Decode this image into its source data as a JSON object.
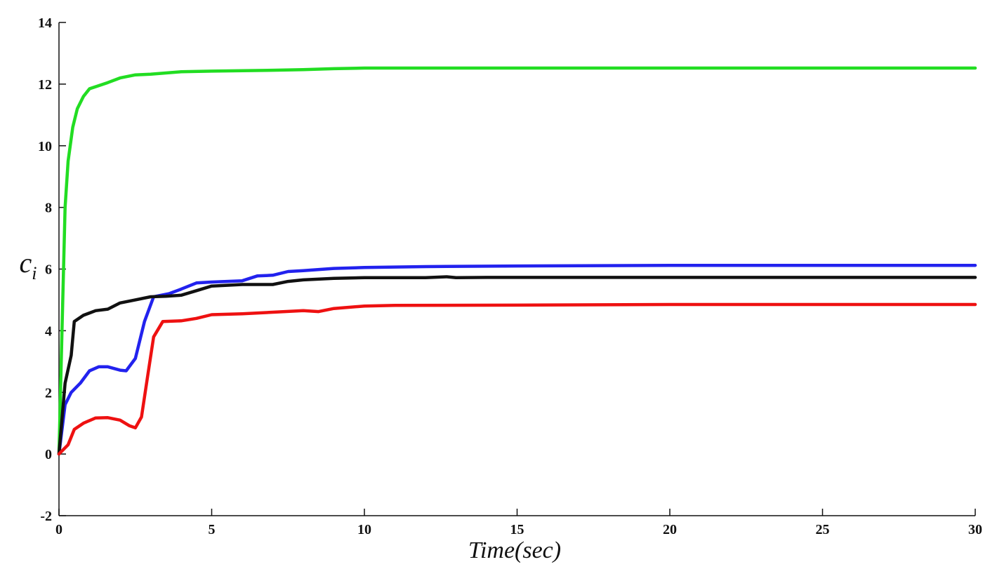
{
  "chart_data": {
    "type": "line",
    "xlabel": "Time(sec)",
    "ylabel_main": "c",
    "ylabel_sub": "i",
    "xlim": [
      0,
      30
    ],
    "ylim": [
      -2,
      14
    ],
    "xticks": [
      "0",
      "5",
      "10",
      "15",
      "20",
      "25",
      "30"
    ],
    "yticks": [
      "-2",
      "0",
      "2",
      "4",
      "6",
      "8",
      "10",
      "12",
      "14"
    ],
    "grid": false,
    "series": [
      {
        "color": "#22dd22",
        "points": [
          [
            0,
            0
          ],
          [
            0.1,
            4
          ],
          [
            0.2,
            8
          ],
          [
            0.3,
            9.5
          ],
          [
            0.45,
            10.6
          ],
          [
            0.6,
            11.2
          ],
          [
            0.8,
            11.6
          ],
          [
            1.0,
            11.85
          ],
          [
            1.3,
            11.95
          ],
          [
            1.6,
            12.05
          ],
          [
            2.0,
            12.2
          ],
          [
            2.5,
            12.3
          ],
          [
            3.0,
            12.32
          ],
          [
            4.0,
            12.4
          ],
          [
            5.0,
            12.42
          ],
          [
            7.0,
            12.45
          ],
          [
            8.0,
            12.47
          ],
          [
            9.0,
            12.5
          ],
          [
            10.0,
            12.52
          ],
          [
            15.0,
            12.52
          ],
          [
            20.0,
            12.52
          ],
          [
            25.0,
            12.52
          ],
          [
            30.0,
            12.52
          ]
        ]
      },
      {
        "color": "#2222ee",
        "points": [
          [
            0,
            0
          ],
          [
            0.2,
            1.6
          ],
          [
            0.4,
            2.0
          ],
          [
            0.7,
            2.3
          ],
          [
            1.0,
            2.7
          ],
          [
            1.3,
            2.83
          ],
          [
            1.6,
            2.83
          ],
          [
            2.0,
            2.72
          ],
          [
            2.2,
            2.7
          ],
          [
            2.5,
            3.1
          ],
          [
            2.8,
            4.3
          ],
          [
            3.1,
            5.1
          ],
          [
            3.6,
            5.2
          ],
          [
            4.0,
            5.35
          ],
          [
            4.5,
            5.55
          ],
          [
            5.0,
            5.58
          ],
          [
            6.0,
            5.62
          ],
          [
            6.5,
            5.78
          ],
          [
            7.0,
            5.8
          ],
          [
            7.5,
            5.92
          ],
          [
            8.0,
            5.95
          ],
          [
            9.0,
            6.02
          ],
          [
            10.0,
            6.05
          ],
          [
            12.0,
            6.08
          ],
          [
            15.0,
            6.1
          ],
          [
            20.0,
            6.12
          ],
          [
            25.0,
            6.12
          ],
          [
            30.0,
            6.12
          ]
        ]
      },
      {
        "color": "#111111",
        "points": [
          [
            0,
            0
          ],
          [
            0.2,
            2.3
          ],
          [
            0.4,
            3.2
          ],
          [
            0.5,
            4.3
          ],
          [
            0.8,
            4.5
          ],
          [
            1.2,
            4.65
          ],
          [
            1.6,
            4.7
          ],
          [
            2.0,
            4.9
          ],
          [
            2.5,
            5.0
          ],
          [
            3.0,
            5.1
          ],
          [
            3.5,
            5.12
          ],
          [
            4.0,
            5.15
          ],
          [
            4.5,
            5.3
          ],
          [
            5.0,
            5.45
          ],
          [
            6.0,
            5.5
          ],
          [
            7.0,
            5.5
          ],
          [
            7.5,
            5.6
          ],
          [
            8.0,
            5.65
          ],
          [
            9.0,
            5.7
          ],
          [
            10.0,
            5.72
          ],
          [
            12.0,
            5.72
          ],
          [
            12.7,
            5.75
          ],
          [
            13.0,
            5.72
          ],
          [
            14.0,
            5.73
          ],
          [
            16.0,
            5.73
          ],
          [
            20.0,
            5.73
          ],
          [
            25.0,
            5.73
          ],
          [
            30.0,
            5.73
          ]
        ]
      },
      {
        "color": "#ee1111",
        "points": [
          [
            0,
            0
          ],
          [
            0.3,
            0.3
          ],
          [
            0.5,
            0.8
          ],
          [
            0.8,
            1.0
          ],
          [
            1.2,
            1.17
          ],
          [
            1.6,
            1.18
          ],
          [
            2.0,
            1.1
          ],
          [
            2.3,
            0.92
          ],
          [
            2.5,
            0.85
          ],
          [
            2.7,
            1.2
          ],
          [
            2.9,
            2.5
          ],
          [
            3.1,
            3.8
          ],
          [
            3.4,
            4.3
          ],
          [
            4.0,
            4.32
          ],
          [
            4.5,
            4.4
          ],
          [
            5.0,
            4.52
          ],
          [
            6.0,
            4.55
          ],
          [
            7.0,
            4.6
          ],
          [
            8.0,
            4.65
          ],
          [
            8.5,
            4.62
          ],
          [
            9.0,
            4.72
          ],
          [
            10.0,
            4.8
          ],
          [
            11.0,
            4.82
          ],
          [
            15.0,
            4.83
          ],
          [
            20.0,
            4.85
          ],
          [
            25.0,
            4.85
          ],
          [
            30.0,
            4.85
          ]
        ]
      }
    ]
  }
}
